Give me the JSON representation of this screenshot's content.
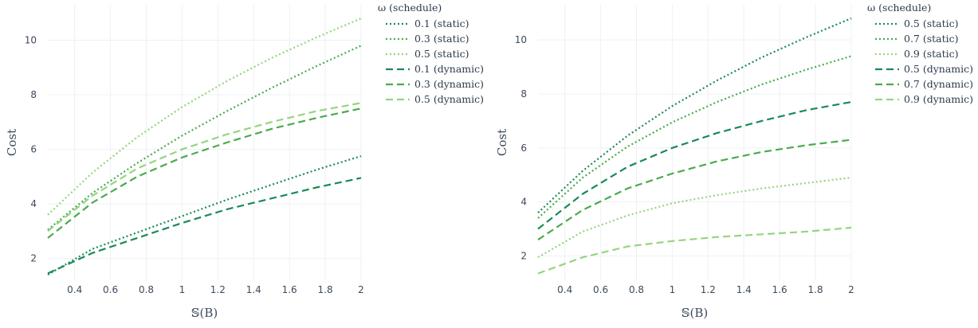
{
  "colors": {
    "dark": "#1a8a57",
    "mid": "#4aaa4e",
    "light": "#95d57f",
    "grid": "#eef0f3",
    "text": "#3c4a5c"
  },
  "chart_data": [
    {
      "type": "line",
      "xlabel": "𝕊(B)",
      "ylabel": "Cost",
      "xlim": [
        0.25,
        2.0
      ],
      "ylim": [
        1.2,
        11.3
      ],
      "xticks": [
        "0.4",
        "0.6",
        "0.8",
        "1",
        "1.2",
        "1.4",
        "1.6",
        "1.8",
        "2"
      ],
      "yticks": [
        "2",
        "4",
        "6",
        "8",
        "10"
      ],
      "grid": true,
      "legend_title": "ω (schedule)",
      "legend_position": "top-right",
      "series": [
        {
          "name": "0.1 (static)",
          "color": "dark",
          "dash": "dotted",
          "x": [
            0.25,
            0.5,
            0.75,
            1.0,
            1.25,
            1.5,
            1.75,
            2.0
          ],
          "y": [
            1.4,
            2.35,
            2.95,
            3.55,
            4.15,
            4.7,
            5.25,
            5.75
          ]
        },
        {
          "name": "0.3 (static)",
          "color": "mid",
          "dash": "dotted",
          "x": [
            0.25,
            0.5,
            0.75,
            1.0,
            1.25,
            1.5,
            1.75,
            2.0
          ],
          "y": [
            3.05,
            4.4,
            5.5,
            6.5,
            7.4,
            8.25,
            9.05,
            9.8
          ]
        },
        {
          "name": "0.5 (static)",
          "color": "light",
          "dash": "dotted",
          "x": [
            0.25,
            0.5,
            0.75,
            1.0,
            1.25,
            1.5,
            1.75,
            2.0
          ],
          "y": [
            3.6,
            5.15,
            6.45,
            7.55,
            8.5,
            9.35,
            10.1,
            10.8
          ]
        },
        {
          "name": "0.1 (dynamic)",
          "color": "dark",
          "dash": "dashed",
          "x": [
            0.25,
            0.5,
            0.75,
            1.0,
            1.25,
            1.5,
            1.75,
            2.0
          ],
          "y": [
            1.45,
            2.2,
            2.75,
            3.3,
            3.8,
            4.2,
            4.6,
            4.95
          ]
        },
        {
          "name": "0.3 (dynamic)",
          "color": "mid",
          "dash": "dashed",
          "x": [
            0.25,
            0.5,
            0.75,
            1.0,
            1.25,
            1.5,
            1.75,
            2.0
          ],
          "y": [
            2.75,
            4.05,
            5.0,
            5.7,
            6.25,
            6.75,
            7.15,
            7.5
          ]
        },
        {
          "name": "0.5 (dynamic)",
          "color": "light",
          "dash": "dashed",
          "x": [
            0.25,
            0.5,
            0.75,
            1.0,
            1.25,
            1.5,
            1.75,
            2.0
          ],
          "y": [
            3.0,
            4.3,
            5.3,
            6.0,
            6.55,
            7.0,
            7.4,
            7.7
          ]
        }
      ]
    },
    {
      "type": "line",
      "xlabel": "𝕊(B)",
      "ylabel": "Cost",
      "xlim": [
        0.25,
        2.0
      ],
      "ylim": [
        1.1,
        11.3
      ],
      "xticks": [
        "0.4",
        "0.6",
        "0.8",
        "1",
        "1.2",
        "1.4",
        "1.6",
        "1.8",
        "2"
      ],
      "yticks": [
        "2",
        "4",
        "6",
        "8",
        "10"
      ],
      "grid": true,
      "legend_title": "ω (schedule)",
      "legend_position": "top-right",
      "series": [
        {
          "name": "0.5 (static)",
          "color": "dark",
          "dash": "dotted",
          "x": [
            0.25,
            0.5,
            0.75,
            1.0,
            1.25,
            1.5,
            1.75,
            2.0
          ],
          "y": [
            3.6,
            5.15,
            6.45,
            7.55,
            8.5,
            9.35,
            10.1,
            10.8
          ]
        },
        {
          "name": "0.7 (static)",
          "color": "mid",
          "dash": "dotted",
          "x": [
            0.25,
            0.5,
            0.75,
            1.0,
            1.25,
            1.5,
            1.75,
            2.0
          ],
          "y": [
            3.4,
            4.9,
            6.05,
            6.95,
            7.7,
            8.35,
            8.9,
            9.4
          ]
        },
        {
          "name": "0.9 (static)",
          "color": "light",
          "dash": "dotted",
          "x": [
            0.25,
            0.5,
            0.75,
            1.0,
            1.25,
            1.5,
            1.75,
            2.0
          ],
          "y": [
            1.95,
            2.9,
            3.5,
            3.95,
            4.25,
            4.5,
            4.7,
            4.9
          ]
        },
        {
          "name": "0.5 (dynamic)",
          "color": "dark",
          "dash": "dashed",
          "x": [
            0.25,
            0.5,
            0.75,
            1.0,
            1.25,
            1.5,
            1.75,
            2.0
          ],
          "y": [
            3.0,
            4.3,
            5.3,
            6.0,
            6.55,
            7.0,
            7.4,
            7.7
          ]
        },
        {
          "name": "0.7 (dynamic)",
          "color": "mid",
          "dash": "dashed",
          "x": [
            0.25,
            0.5,
            0.75,
            1.0,
            1.25,
            1.5,
            1.75,
            2.0
          ],
          "y": [
            2.6,
            3.7,
            4.5,
            5.05,
            5.5,
            5.85,
            6.1,
            6.3
          ]
        },
        {
          "name": "0.9 (dynamic)",
          "color": "light",
          "dash": "dashed",
          "x": [
            0.25,
            0.5,
            0.75,
            1.0,
            1.25,
            1.5,
            1.75,
            2.0
          ],
          "y": [
            1.35,
            1.95,
            2.35,
            2.55,
            2.7,
            2.8,
            2.9,
            3.05
          ]
        }
      ]
    }
  ]
}
